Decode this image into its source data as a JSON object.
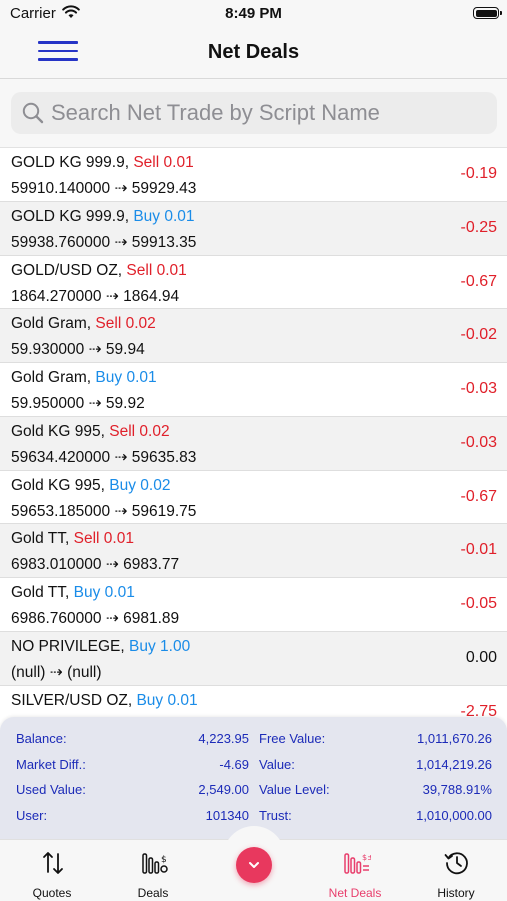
{
  "status_bar": {
    "carrier": "Carrier",
    "time": "8:49 PM"
  },
  "header": {
    "title": "Net Deals"
  },
  "search": {
    "placeholder": "Search Net Trade by Script Name",
    "value": ""
  },
  "deals": [
    {
      "name": "GOLD KG 999.9,",
      "side": "Sell",
      "qty": "0.01",
      "open": "59910.140000",
      "close": "59929.43",
      "pnl": "-0.19"
    },
    {
      "name": "GOLD KG 999.9,",
      "side": "Buy",
      "qty": "0.01",
      "open": "59938.760000",
      "close": "59913.35",
      "pnl": "-0.25"
    },
    {
      "name": "GOLD/USD OZ,",
      "side": "Sell",
      "qty": "0.01",
      "open": "1864.270000",
      "close": "1864.94",
      "pnl": "-0.67"
    },
    {
      "name": "Gold Gram,",
      "side": "Sell",
      "qty": "0.02",
      "open": "59.930000",
      "close": "59.94",
      "pnl": "-0.02"
    },
    {
      "name": "Gold Gram,",
      "side": "Buy",
      "qty": "0.01",
      "open": "59.950000",
      "close": "59.92",
      "pnl": "-0.03"
    },
    {
      "name": "Gold KG 995,",
      "side": "Sell",
      "qty": "0.02",
      "open": "59634.420000",
      "close": "59635.83",
      "pnl": "-0.03"
    },
    {
      "name": "Gold KG 995,",
      "side": "Buy",
      "qty": "0.02",
      "open": "59653.185000",
      "close": "59619.75",
      "pnl": "-0.67"
    },
    {
      "name": "Gold TT,",
      "side": "Sell",
      "qty": "0.01",
      "open": "6983.010000",
      "close": "6983.77",
      "pnl": "-0.01"
    },
    {
      "name": "Gold TT,",
      "side": "Buy",
      "qty": "0.01",
      "open": "6986.760000",
      "close": "6981.89",
      "pnl": "-0.05"
    },
    {
      "name": "NO PRIVILEGE,",
      "side": "Buy",
      "qty": "1.00",
      "open": "(null)",
      "close": "(null)",
      "pnl": "0.00"
    },
    {
      "name": "SILVER/USD OZ,",
      "side": "Buy",
      "qty": "0.01",
      "open": "",
      "close": "",
      "pnl": "-2.75"
    }
  ],
  "summary": {
    "balance_label": "Balance:",
    "balance": "4,223.95",
    "free_value_label": "Free Value:",
    "free_value": "1,011,670.26",
    "market_diff_label": "Market Diff.:",
    "market_diff": "-4.69",
    "value_label": "Value:",
    "value": "1,014,219.26",
    "used_value_label": "Used Value:",
    "used_value": "2,549.00",
    "value_level_label": "Value Level:",
    "value_level": "39,788.91%",
    "user_label": "User:",
    "user": "101340",
    "trust_label": "Trust:",
    "trust": "1,010,000.00"
  },
  "tabs": [
    {
      "label": "Quotes",
      "icon": "arrows-up-down-icon",
      "active": false
    },
    {
      "label": "Deals",
      "icon": "deals-chart-icon",
      "active": false
    },
    {
      "label": "Net Deals",
      "icon": "net-deals-chart-icon",
      "active": true
    },
    {
      "label": "History",
      "icon": "history-clock-icon",
      "active": false
    }
  ],
  "colors": {
    "sell": "#e0202a",
    "buy": "#1a8ce8",
    "accent": "#e8385e",
    "summary_text": "#1c2bb8",
    "menu": "#2634c6"
  }
}
